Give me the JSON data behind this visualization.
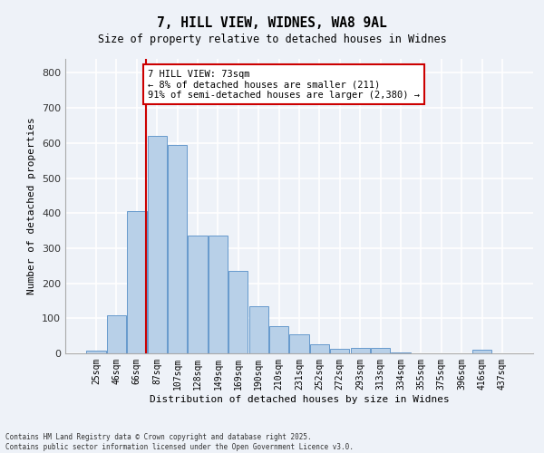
{
  "title1": "7, HILL VIEW, WIDNES, WA8 9AL",
  "title2": "Size of property relative to detached houses in Widnes",
  "xlabel": "Distribution of detached houses by size in Widnes",
  "ylabel": "Number of detached properties",
  "categories": [
    "25sqm",
    "46sqm",
    "66sqm",
    "87sqm",
    "107sqm",
    "128sqm",
    "149sqm",
    "169sqm",
    "190sqm",
    "210sqm",
    "231sqm",
    "252sqm",
    "272sqm",
    "293sqm",
    "313sqm",
    "334sqm",
    "355sqm",
    "375sqm",
    "396sqm",
    "416sqm",
    "437sqm"
  ],
  "values": [
    8,
    108,
    405,
    620,
    595,
    335,
    335,
    235,
    135,
    78,
    55,
    25,
    12,
    15,
    15,
    3,
    0,
    0,
    0,
    10,
    0
  ],
  "bar_color": "#b8d0e8",
  "bar_edge_color": "#6699cc",
  "background_color": "#eef2f8",
  "grid_color": "#ffffff",
  "annotation_text": "7 HILL VIEW: 73sqm\n← 8% of detached houses are smaller (211)\n91% of semi-detached houses are larger (2,380) →",
  "vline_x": 2.43,
  "vline_color": "#cc0000",
  "annotation_box_color": "#ffffff",
  "annotation_box_edge": "#cc0000",
  "footer_text": "Contains HM Land Registry data © Crown copyright and database right 2025.\nContains public sector information licensed under the Open Government Licence v3.0.",
  "ylim": [
    0,
    840
  ],
  "yticks": [
    0,
    100,
    200,
    300,
    400,
    500,
    600,
    700,
    800
  ]
}
